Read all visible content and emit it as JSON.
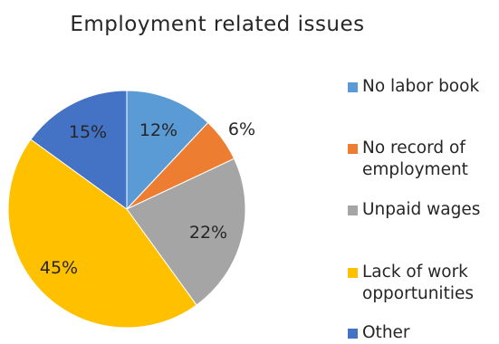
{
  "chart_data": {
    "type": "pie",
    "title": "Employment related issues",
    "slices": [
      {
        "label": "No labor book",
        "value": 12,
        "value_label": "12%",
        "color": "#5B9BD5"
      },
      {
        "label": "No record of employment",
        "value": 6,
        "value_label": "6%",
        "color": "#ED7D31"
      },
      {
        "label": "Unpaid wages",
        "value": 22,
        "value_label": "22%",
        "color": "#A5A5A5"
      },
      {
        "label": "Lack of work opportunities",
        "value": 45,
        "value_label": "45%",
        "color": "#FFC000"
      },
      {
        "label": "Other",
        "value": 15,
        "value_label": "15%",
        "color": "#4472C4"
      }
    ],
    "legend_position": "right",
    "start_angle": "12 o'clock, clockwise"
  }
}
